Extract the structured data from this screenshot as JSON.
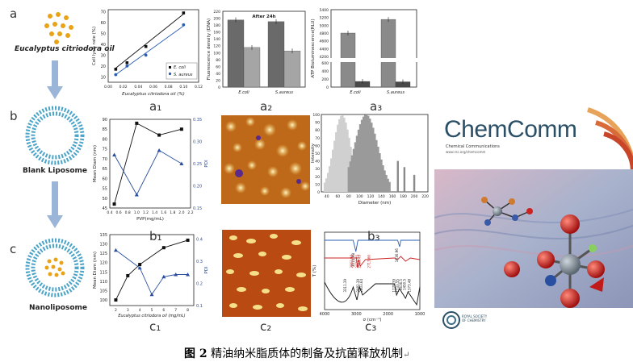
{
  "figure": {
    "caption_number": "图 2",
    "caption_text": "精油纳米脂质体的制备及抗菌释放机制",
    "caption_mark": "↵"
  },
  "left": {
    "a_letter": "a",
    "b_letter": "b",
    "c_letter": "c",
    "oil_label": "Eucalyptus citriodora oil",
    "blank_label": "Blank Liposome",
    "nano_label": "Nanoliposome"
  },
  "subpanels": {
    "a1": "a₁",
    "a2": "a₂",
    "a3": "a₃",
    "b1": "b₁",
    "b2": "b₂",
    "b3": "b₃",
    "c1": "c₁",
    "c2": "c₂",
    "c3": "c₃"
  },
  "chart_a1": {
    "type": "scatter",
    "xlabel": "Eucalyptus citriodora oil (%)",
    "ylabel": "Cell lysis rate (%)",
    "xticks": [
      "0.00",
      "0.02",
      "0.04",
      "0.06",
      "0.08",
      "0.10",
      "0.12"
    ],
    "yticks": [
      "10",
      "20",
      "30",
      "40",
      "50",
      "60",
      "70"
    ],
    "xlim": [
      0,
      0.12
    ],
    "ylim": [
      5,
      72
    ],
    "series": [
      {
        "name": "E. coli",
        "x": [
          0.01,
          0.025,
          0.05,
          0.1
        ],
        "y": [
          17,
          23,
          38,
          69
        ],
        "fit": [
          [
            0.01,
            18
          ],
          [
            0.1,
            68
          ]
        ]
      },
      {
        "name": "S. aureus",
        "x": [
          0.01,
          0.025,
          0.05,
          0.1
        ],
        "y": [
          12,
          20,
          30,
          58
        ],
        "fit": [
          [
            0.01,
            12
          ],
          [
            0.1,
            57
          ]
        ]
      }
    ],
    "legend": [
      "E. coli",
      "S. aureus"
    ]
  },
  "chart_a2": {
    "type": "bar",
    "title": "After 24h",
    "ylabel": "Fluorescence density (DNA)",
    "yticks": [
      "0",
      "20",
      "40",
      "60",
      "80",
      "100",
      "120",
      "140",
      "160",
      "180",
      "200",
      "220"
    ],
    "ylim": [
      0,
      220
    ],
    "groups": [
      "E.coli",
      "S.aureus"
    ],
    "values": [
      [
        195,
        115
      ],
      [
        190,
        105
      ]
    ]
  },
  "chart_a3": {
    "type": "bar",
    "ylabel": "ATP Bioluminescence(RLU)",
    "yticks": [
      "0",
      "200",
      "400",
      "600",
      "4200",
      "4400",
      "4600",
      "4800",
      "5000",
      "5200",
      "5400"
    ],
    "groups": [
      "E.coli",
      "S.aureus"
    ],
    "values": [
      [
        4800,
        140
      ],
      [
        5150,
        130
      ]
    ]
  },
  "chart_b1": {
    "type": "line",
    "xlabel": "PVP(mg/mL)",
    "ylabel_left": "Mean Diam (nm)",
    "ylabel_right": "PDI",
    "xticks": [
      "0.4",
      "0.6",
      "0.8",
      "1.0",
      "1.2",
      "1.4",
      "1.6",
      "1.8",
      "2.0",
      "2.2"
    ],
    "yticks_left": [
      "45",
      "50",
      "55",
      "60",
      "65",
      "70",
      "75",
      "80",
      "85",
      "90"
    ],
    "yticks_right": [
      "0.15",
      "0.20",
      "0.25",
      "0.30",
      "0.35"
    ],
    "series": [
      {
        "name": "Mean Diam",
        "x": [
          0.5,
          1.0,
          1.5,
          2.0
        ],
        "y": [
          47,
          88,
          82,
          85
        ]
      },
      {
        "name": "PDI",
        "x": [
          0.5,
          1.0,
          1.5,
          2.0
        ],
        "y": [
          0.27,
          0.18,
          0.28,
          0.25
        ]
      }
    ]
  },
  "chart_b3": {
    "type": "bar",
    "xlabel": "Diameter (nm)",
    "ylabel": "Intensity",
    "xticks": [
      "40",
      "60",
      "80",
      "100",
      "120",
      "140",
      "160",
      "180",
      "200",
      "220"
    ],
    "yticks": [
      "0",
      "10",
      "20",
      "30",
      "40",
      "50",
      "60",
      "70",
      "80",
      "90",
      "100"
    ]
  },
  "chart_c1": {
    "type": "line",
    "xlabel": "Eucalyptus citriodora oil (mg/mL)",
    "ylabel_left": "Mean Diam (nm)",
    "ylabel_right": "PDI",
    "xticks": [
      "2",
      "3",
      "4",
      "5",
      "6",
      "7",
      "8"
    ],
    "yticks_left": [
      "100",
      "105",
      "110",
      "115",
      "120",
      "125",
      "130",
      "135"
    ],
    "yticks_right": [
      "0.1",
      "0.2",
      "0.3",
      "0.4"
    ],
    "series": [
      {
        "name": "Mean Diam",
        "x": [
          2,
          3,
          4,
          6,
          8
        ],
        "y": [
          100,
          113,
          119,
          128,
          132
        ]
      },
      {
        "name": "PDI",
        "x": [
          2,
          4,
          5,
          6,
          7,
          8
        ],
        "y": [
          0.35,
          0.27,
          0.15,
          0.23,
          0.24,
          0.24
        ]
      }
    ]
  },
  "chart_c3": {
    "type": "line",
    "xlabel": "σ (cm⁻¹)",
    "ylabel": "T (%)",
    "xticks": [
      "4000",
      "3000",
      "2000",
      "1000"
    ],
    "annotations_top": [
      "3014.98",
      "1636.96"
    ],
    "annotations_mid": [
      "2963.98",
      "2876.85",
      "2919.49",
      "2713.66"
    ],
    "annotations_bot": [
      "3311.39",
      "2982.39",
      "2803.64",
      "1733.55",
      "1775.39",
      "1636.5",
      "1450.5",
      "1373.48"
    ]
  },
  "cover": {
    "title": "ChemComm",
    "subtitle": "Chemical Communications",
    "url": "www.rsc.org/chemcomm",
    "publisher": "ROYAL SOCIETY OF CHEMISTRY",
    "colors": {
      "brand": "#2a4f66",
      "accent": "#e67e22"
    }
  }
}
